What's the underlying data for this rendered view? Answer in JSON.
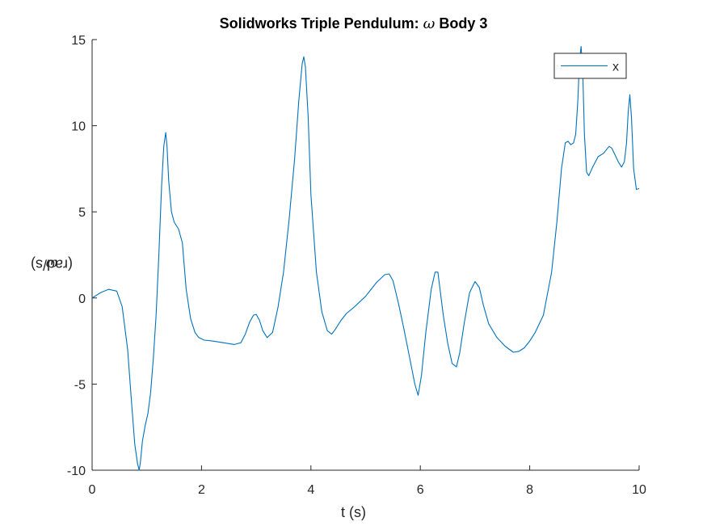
{
  "title_text": "Solidworks Triple Pendulum: ",
  "title_symbol": "ω",
  "title_suffix": " Body 3",
  "ylabel_symbol": "ω",
  "ylabel_text": " (rad/s)",
  "xlabel_text": "t (s)",
  "chart_data": {
    "type": "line",
    "title": "Solidworks Triple Pendulum: ω Body 3",
    "xlabel": "t (s)",
    "ylabel": "ω (rad/s)",
    "xlim": [
      0,
      10
    ],
    "ylim": [
      -10,
      15
    ],
    "xticks": [
      0,
      2,
      4,
      6,
      8,
      10
    ],
    "yticks": [
      -10,
      -5,
      0,
      5,
      10,
      15
    ],
    "grid": false,
    "legend_position": "top-right",
    "series": [
      {
        "name": "x",
        "color": "#0072BD",
        "x": [
          0,
          0.15,
          0.3,
          0.45,
          0.55,
          0.65,
          0.72,
          0.78,
          0.83,
          0.86,
          0.88,
          0.92,
          0.97,
          1.02,
          1.07,
          1.12,
          1.17,
          1.22,
          1.27,
          1.31,
          1.345,
          1.37,
          1.4,
          1.45,
          1.5,
          1.58,
          1.65,
          1.72,
          1.8,
          1.88,
          1.95,
          2.05,
          2.2,
          2.4,
          2.6,
          2.72,
          2.8,
          2.88,
          2.95,
          3.0,
          3.06,
          3.12,
          3.2,
          3.3,
          3.4,
          3.5,
          3.6,
          3.7,
          3.78,
          3.84,
          3.87,
          3.9,
          3.95,
          4.0,
          4.1,
          4.2,
          4.3,
          4.38,
          4.45,
          4.55,
          4.65,
          4.8,
          5.0,
          5.2,
          5.35,
          5.43,
          5.5,
          5.6,
          5.7,
          5.8,
          5.9,
          5.96,
          6.02,
          6.1,
          6.2,
          6.27,
          6.32,
          6.36,
          6.42,
          6.5,
          6.58,
          6.66,
          6.72,
          6.8,
          6.9,
          7.0,
          7.08,
          7.15,
          7.25,
          7.4,
          7.55,
          7.7,
          7.8,
          7.9,
          8.0,
          8.1,
          8.25,
          8.4,
          8.5,
          8.58,
          8.65,
          8.7,
          8.75,
          8.8,
          8.84,
          8.88,
          8.91,
          8.94,
          8.97,
          9.0,
          9.04,
          9.08,
          9.15,
          9.25,
          9.35,
          9.45,
          9.5,
          9.56,
          9.62,
          9.68,
          9.73,
          9.77,
          9.8,
          9.83,
          9.86,
          9.9,
          9.95,
          10.0
        ],
        "y": [
          0.0,
          0.3,
          0.5,
          0.4,
          -0.5,
          -3.0,
          -6.0,
          -8.5,
          -9.6,
          -10.0,
          -9.6,
          -8.3,
          -7.4,
          -6.7,
          -5.5,
          -3.5,
          -1.0,
          2.5,
          6.5,
          8.8,
          9.6,
          8.8,
          6.8,
          5.0,
          4.4,
          4.0,
          3.2,
          0.5,
          -1.2,
          -2.0,
          -2.3,
          -2.45,
          -2.5,
          -2.6,
          -2.7,
          -2.6,
          -2.1,
          -1.4,
          -1.0,
          -0.95,
          -1.3,
          -1.9,
          -2.3,
          -2.0,
          -0.5,
          1.5,
          4.5,
          8.0,
          11.5,
          13.6,
          14.0,
          13.4,
          10.5,
          6.0,
          1.5,
          -0.8,
          -1.9,
          -2.1,
          -1.8,
          -1.3,
          -0.9,
          -0.5,
          0.1,
          0.9,
          1.35,
          1.4,
          1.0,
          -0.3,
          -1.8,
          -3.4,
          -5.0,
          -5.65,
          -4.5,
          -2.0,
          0.5,
          1.5,
          1.5,
          0.5,
          -1.0,
          -2.6,
          -3.8,
          -4.0,
          -3.2,
          -1.5,
          0.3,
          0.95,
          0.6,
          -0.4,
          -1.5,
          -2.3,
          -2.8,
          -3.15,
          -3.1,
          -2.9,
          -2.5,
          -2.0,
          -1.0,
          1.5,
          4.5,
          7.5,
          9.0,
          9.1,
          8.9,
          9.0,
          9.5,
          11.5,
          13.8,
          14.6,
          13.0,
          9.5,
          7.3,
          7.1,
          7.6,
          8.2,
          8.4,
          8.8,
          8.7,
          8.3,
          7.9,
          7.6,
          7.9,
          9.0,
          10.8,
          11.8,
          10.5,
          7.5,
          6.3,
          6.35
        ]
      }
    ]
  }
}
